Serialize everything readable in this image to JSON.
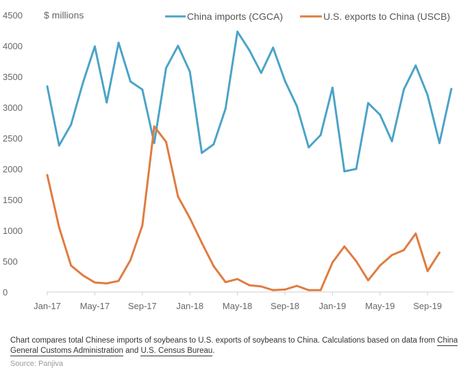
{
  "chart_data": {
    "type": "line",
    "unit_label": "$ millions",
    "ylim": [
      0,
      4500
    ],
    "y_ticks": [
      0,
      500,
      1000,
      1500,
      2000,
      2500,
      3000,
      3500,
      4000,
      4500
    ],
    "x_tick_labels": [
      "Jan-17",
      "May-17",
      "Sep-17",
      "Jan-18",
      "May-18",
      "Sep-18",
      "Jan-19",
      "May-19",
      "Sep-19"
    ],
    "x_tick_index": [
      0,
      4,
      8,
      12,
      16,
      20,
      24,
      28,
      32
    ],
    "x_count": 35,
    "series": [
      {
        "name": "China imports (CGCA)",
        "color": "#4ba3c7",
        "values": [
          3340,
          2380,
          2720,
          3400,
          3990,
          3080,
          4050,
          3420,
          3290,
          2420,
          3640,
          4000,
          3580,
          2260,
          2400,
          2980,
          4230,
          3930,
          3560,
          3970,
          3430,
          3020,
          2350,
          2550,
          3320,
          1960,
          2000,
          3070,
          2880,
          2450,
          3290,
          3680,
          3200,
          2420,
          3300
        ]
      },
      {
        "name": "U.S. exports to China (USCB)",
        "color": "#e07b3f",
        "values": [
          1900,
          1050,
          430,
          270,
          155,
          140,
          180,
          520,
          1080,
          2690,
          2440,
          1550,
          1200,
          800,
          420,
          160,
          210,
          110,
          90,
          30,
          40,
          100,
          30,
          30,
          480,
          740,
          500,
          190,
          430,
          600,
          680,
          950,
          340,
          640
        ]
      }
    ]
  },
  "caption": {
    "text_1": "Chart compares total Chinese imports of soybeans to U.S. exports of soybeans to China. Calculations based on data from ",
    "link_1": "China General Customs Administration",
    "text_2": " and ",
    "link_2": "U.S. Census Bureau",
    "text_3": "."
  },
  "source": "Source: Panjiva"
}
